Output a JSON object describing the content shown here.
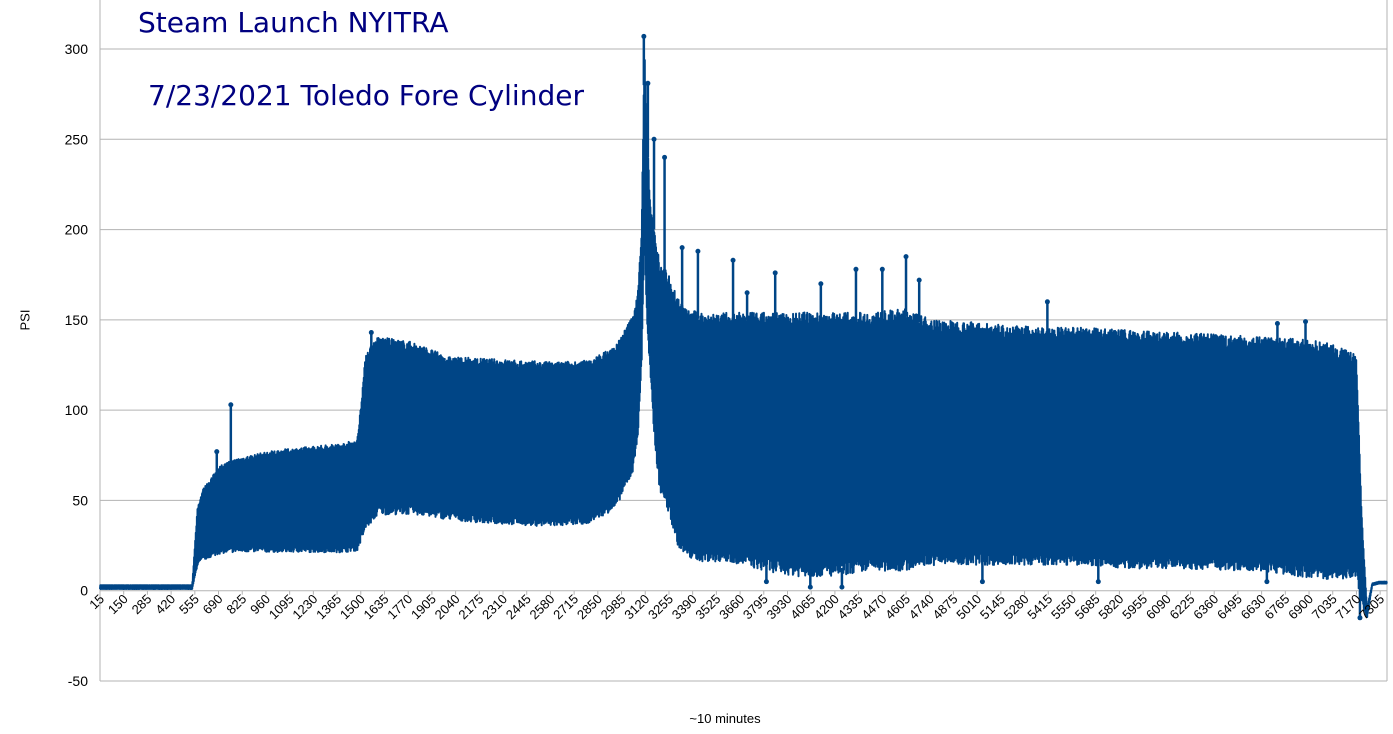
{
  "chart_data": {
    "type": "line",
    "title": "Steam Launch NYITRA",
    "subtitle": "7/23/2021 Toledo Fore Cylinder",
    "xlabel": "~10 minutes",
    "ylabel": "PSI",
    "ylim": [
      -50,
      300
    ],
    "yticks": [
      300,
      250,
      200,
      150,
      100,
      50,
      0,
      -50
    ],
    "xlim": [
      15,
      7344
    ],
    "grid": "horizontal",
    "line_color": "#004586",
    "xtick_labels": [
      "15",
      "150",
      "285",
      "420",
      "555",
      "690",
      "825",
      "960",
      "1095",
      "1230",
      "1365",
      "1500",
      "1635",
      "1770",
      "1905",
      "2040",
      "2175",
      "2310",
      "2445",
      "2580",
      "2715",
      "2850",
      "2985",
      "3120",
      "3255",
      "3390",
      "3525",
      "3660",
      "3795",
      "3930",
      "4065",
      "4200",
      "4335",
      "4470",
      "4605",
      "4740",
      "4875",
      "5010",
      "5145",
      "5280",
      "5415",
      "5550",
      "5685",
      "5820",
      "5955",
      "6090",
      "6225",
      "6360",
      "6495",
      "6630",
      "6765",
      "6900",
      "7035",
      "7170",
      "7305"
    ],
    "envelope": {
      "x": [
        15,
        540,
        570,
        600,
        700,
        800,
        900,
        1000,
        1100,
        1200,
        1300,
        1400,
        1480,
        1530,
        1600,
        1660,
        1800,
        2000,
        2200,
        2400,
        2600,
        2800,
        2950,
        3050,
        3080,
        3100,
        3115,
        3130,
        3150,
        3170,
        3200,
        3260,
        3300,
        3350,
        3450,
        3600,
        3800,
        4000,
        4200,
        4400,
        4600,
        4700,
        4800,
        5000,
        5200,
        5400,
        5600,
        5800,
        6000,
        6200,
        6400,
        6600,
        6800,
        7000,
        7170,
        7200,
        7230,
        7260,
        7300,
        7344
      ],
      "upper": [
        3,
        3,
        45,
        55,
        68,
        72,
        74,
        76,
        77,
        78,
        79,
        80,
        82,
        130,
        138,
        137,
        135,
        127,
        126,
        125,
        124,
        125,
        133,
        150,
        165,
        200,
        300,
        250,
        210,
        200,
        180,
        170,
        160,
        152,
        150,
        150,
        150,
        150,
        150,
        150,
        152,
        148,
        146,
        145,
        143,
        142,
        142,
        141,
        140,
        139,
        138,
        137,
        136,
        134,
        127,
        40,
        -10,
        4,
        5,
        5
      ],
      "lower": [
        1,
        1,
        15,
        18,
        22,
        23,
        23,
        23,
        23,
        23,
        23,
        23,
        24,
        37,
        45,
        45,
        45,
        42,
        40,
        39,
        38,
        40,
        48,
        68,
        90,
        130,
        200,
        150,
        120,
        90,
        60,
        45,
        30,
        22,
        20,
        20,
        15,
        12,
        12,
        15,
        15,
        18,
        18,
        18,
        18,
        18,
        18,
        16,
        16,
        16,
        15,
        15,
        12,
        10,
        10,
        -5,
        -15,
        3,
        4,
        4
      ]
    },
    "spikes": [
      {
        "x": 680,
        "y": 77
      },
      {
        "x": 760,
        "y": 103
      },
      {
        "x": 1560,
        "y": 143
      },
      {
        "x": 3112,
        "y": 307
      },
      {
        "x": 3135,
        "y": 281
      },
      {
        "x": 3170,
        "y": 250
      },
      {
        "x": 3230,
        "y": 240
      },
      {
        "x": 3330,
        "y": 190
      },
      {
        "x": 3420,
        "y": 188
      },
      {
        "x": 3620,
        "y": 183
      },
      {
        "x": 3700,
        "y": 165
      },
      {
        "x": 3860,
        "y": 176
      },
      {
        "x": 4120,
        "y": 170
      },
      {
        "x": 4320,
        "y": 178
      },
      {
        "x": 4470,
        "y": 178
      },
      {
        "x": 4605,
        "y": 185
      },
      {
        "x": 4680,
        "y": 172
      },
      {
        "x": 5410,
        "y": 160
      },
      {
        "x": 6720,
        "y": 148
      },
      {
        "x": 6880,
        "y": 149
      },
      {
        "x": 3810,
        "y": 5
      },
      {
        "x": 4060,
        "y": 2
      },
      {
        "x": 4240,
        "y": 2
      },
      {
        "x": 5040,
        "y": 5
      },
      {
        "x": 5700,
        "y": 5
      },
      {
        "x": 6660,
        "y": 5
      },
      {
        "x": 7190,
        "y": -15
      }
    ]
  }
}
